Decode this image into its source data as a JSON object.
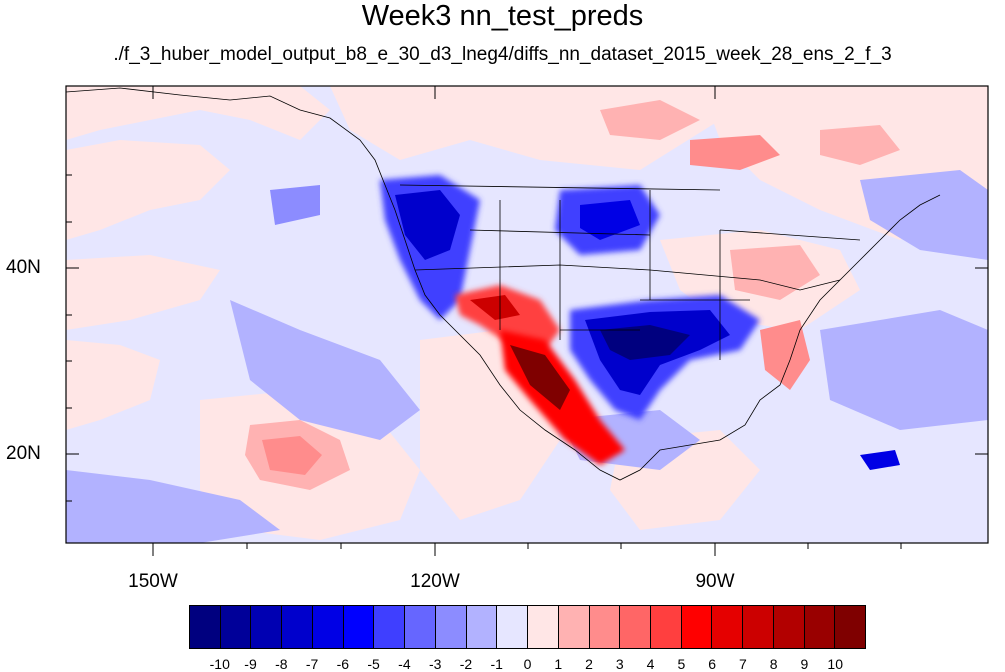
{
  "title": "Week3 nn_test_preds",
  "subtitle": "./f_3_huber_model_output_b8_e_30_d3_lneg4/diffs_nn_dataset_2015_week_28_ens_2_f_3",
  "axes": {
    "lat_labels": [
      "40N",
      "20N"
    ],
    "lon_labels": [
      "150W",
      "120W",
      "90W"
    ]
  },
  "colorbar": {
    "tick_labels": [
      "-10",
      "-9",
      "-8",
      "-7",
      "-6",
      "-5",
      "-4",
      "-3",
      "-2",
      "-1",
      "0",
      "1",
      "2",
      "3",
      "4",
      "5",
      "6",
      "7",
      "8",
      "9",
      "10"
    ],
    "colors": [
      "#00007f",
      "#000099",
      "#0000b2",
      "#0000cc",
      "#0000e5",
      "#0000ff",
      "#3f3fff",
      "#6666ff",
      "#8c8cff",
      "#b2b2ff",
      "#e6e6ff",
      "#ffe6e6",
      "#ffb2b2",
      "#ff8c8c",
      "#ff6666",
      "#ff3f3f",
      "#ff0000",
      "#e50000",
      "#cc0000",
      "#b20000",
      "#990000",
      "#7f0000"
    ]
  },
  "map": {
    "region": "North America and eastern Pacific",
    "lon_range": [
      -160,
      -62
    ],
    "lat_range": [
      10,
      58
    ]
  }
}
